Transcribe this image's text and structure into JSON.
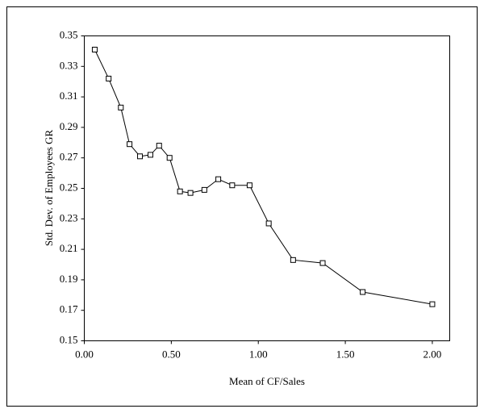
{
  "chart_data": {
    "type": "line",
    "x_label": "Mean of CF/Sales",
    "y_label": "Std. Dev. of Employees GR",
    "x": [
      0.06,
      0.14,
      0.21,
      0.26,
      0.32,
      0.38,
      0.43,
      0.49,
      0.55,
      0.61,
      0.69,
      0.77,
      0.85,
      0.95,
      1.06,
      1.2,
      1.37,
      1.6,
      2.0
    ],
    "series": [
      {
        "color": "#000000",
        "values": [
          0.341,
          0.322,
          0.303,
          0.279,
          0.271,
          0.272,
          0.278,
          0.27,
          0.248,
          0.247,
          0.249,
          0.256,
          0.252,
          0.252,
          0.227,
          0.203,
          0.201,
          0.182,
          0.174
        ]
      }
    ],
    "xlim": [
      0,
      2.1
    ],
    "xticks": [
      {
        "value": 0,
        "label": "0.00"
      },
      {
        "value": 0.5,
        "label": "0.50"
      },
      {
        "value": 1,
        "label": "1.00"
      },
      {
        "value": 1.5,
        "label": "1.50"
      },
      {
        "value": 2,
        "label": "2.00"
      }
    ],
    "ylim": [
      0.15,
      0.35
    ],
    "yticks": [
      0.15,
      0.17,
      0.19,
      0.21,
      0.23,
      0.25,
      0.27,
      0.29,
      0.31,
      0.33,
      0.35
    ]
  }
}
